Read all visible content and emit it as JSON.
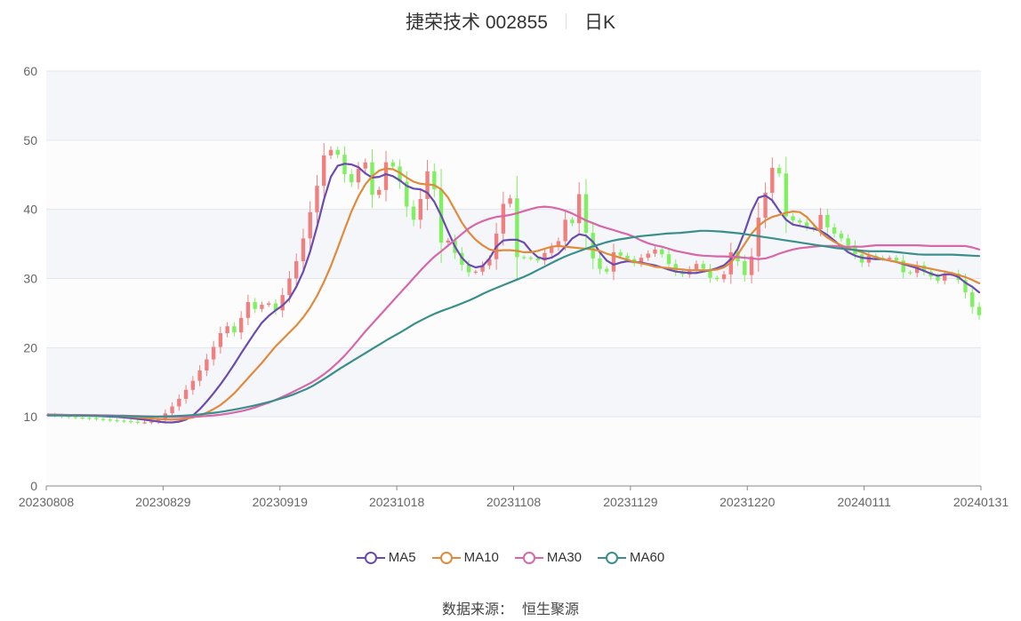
{
  "header": {
    "title": "捷荣技术 002855",
    "period": "日K"
  },
  "legend": [
    {
      "label": "MA5",
      "color": "#6a4bb0"
    },
    {
      "label": "MA10",
      "color": "#e08a3c"
    },
    {
      "label": "MA30",
      "color": "#d667a8"
    },
    {
      "label": "MA60",
      "color": "#3a8f8c"
    }
  ],
  "source": {
    "label": "数据来源：",
    "value": "恒生聚源"
  },
  "chart_data": {
    "type": "candlestick",
    "title": "捷荣技术 002855",
    "period": "日K",
    "ylim": [
      0,
      60
    ],
    "y_ticks": [
      0,
      10,
      20,
      30,
      40,
      50,
      60
    ],
    "x_ticks": [
      "20230808",
      "20230829",
      "20230919",
      "20231018",
      "20231108",
      "20231129",
      "20231220",
      "20240111",
      "20240131"
    ],
    "grid": true,
    "legend_position": "bottom",
    "colors": {
      "up": "#f08080",
      "down": "#80f060"
    },
    "close": [
      10.3,
      10.2,
      10.1,
      10.0,
      9.9,
      9.85,
      9.8,
      9.7,
      9.6,
      9.5,
      9.45,
      9.4,
      9.3,
      9.2,
      9.2,
      9.3,
      9.6,
      10.5,
      11.5,
      12.6,
      13.9,
      15.2,
      16.7,
      18.3,
      20.1,
      22.1,
      23.1,
      22.2,
      24.3,
      26.6,
      25.6,
      26.2,
      26.4,
      25.4,
      27.6,
      30.0,
      32.5,
      35.8,
      39.6,
      43.4,
      47.8,
      48.6,
      47.9,
      45.1,
      43.9,
      45.9,
      46.8,
      42.1,
      42.8,
      46.8,
      46.2,
      44.0,
      40.4,
      38.5,
      41.5,
      45.5,
      42.9,
      35.2,
      35.5,
      33.7,
      32.0,
      30.9,
      31.0,
      31.9,
      32.8,
      36.5,
      40.8,
      41.6,
      33.1,
      33.0,
      32.9,
      32.6,
      33.7,
      34.6,
      35.4,
      38.5,
      38.0,
      42.2,
      36.6,
      32.9,
      31.4,
      31.0,
      33.8,
      33.3,
      32.8,
      32.2,
      33.0,
      33.6,
      34.2,
      33.5,
      32.1,
      31.0,
      30.6,
      31.3,
      32.1,
      31.4,
      30.1,
      29.9,
      30.6,
      33.8,
      32.5,
      30.5,
      33.2,
      38.8,
      42.4,
      46.0,
      45.2,
      39.0,
      38.4,
      38.1,
      37.4,
      37.1,
      39.2,
      37.4,
      36.5,
      35.8,
      34.8,
      33.5,
      32.3,
      33.3,
      33.0,
      32.8,
      33.0,
      32.6,
      30.9,
      30.8,
      31.9,
      31.0,
      30.3,
      29.7,
      30.6,
      30.7,
      29.8,
      28.0,
      25.9,
      24.7
    ],
    "series": [
      {
        "name": "MA5",
        "values": [
          10.3,
          10.28,
          10.27,
          10.25,
          10.23,
          10.2,
          10.17,
          10.13,
          10.09,
          10.04,
          9.98,
          9.9,
          9.8,
          9.7,
          9.58,
          9.45,
          9.3,
          9.2,
          9.18,
          9.3,
          9.6,
          10.2,
          11.1,
          12.2,
          13.4,
          14.7,
          16.1,
          17.6,
          19.2,
          20.7,
          22.2,
          23.6,
          24.6,
          25.4,
          26.1,
          27.1,
          28.8,
          31.0,
          33.9,
          37.5,
          41.4,
          44.7,
          46.3,
          46.6,
          46.5,
          46.1,
          45.2,
          44.6,
          44.7,
          45.1,
          44.8,
          44.2,
          43.4,
          43.0,
          42.9,
          42.4,
          41.1,
          39.1,
          36.8,
          34.6,
          33.0,
          32.0,
          31.6,
          31.8,
          32.9,
          34.6,
          35.5,
          35.6,
          35.6,
          35.2,
          34.0,
          33.1,
          32.8,
          33.0,
          33.6,
          34.6,
          35.8,
          36.4,
          36.2,
          35.3,
          33.8,
          32.6,
          32.0,
          32.3,
          32.5,
          32.4,
          32.3,
          32.1,
          31.9,
          31.6,
          31.3,
          31.0,
          30.9,
          30.8,
          30.8,
          31.0,
          31.2,
          31.5,
          31.9,
          32.8,
          34.3,
          36.8,
          39.7,
          41.7,
          42.0,
          41.3,
          39.8,
          38.5,
          37.8,
          37.6,
          37.4,
          37.2,
          36.9,
          36.3,
          35.5,
          34.6,
          33.8,
          33.3,
          33.0,
          32.9,
          32.8,
          32.8,
          32.6,
          32.4,
          32.1,
          31.8,
          31.5,
          31.1,
          30.7,
          30.4,
          30.6,
          30.6,
          30.2,
          29.4,
          28.8,
          28.0
        ]
      },
      {
        "name": "MA10",
        "values": [
          10.3,
          10.29,
          10.28,
          10.27,
          10.26,
          10.25,
          10.23,
          10.21,
          10.19,
          10.16,
          10.12,
          10.07,
          10.0,
          9.92,
          9.84,
          9.76,
          9.68,
          9.62,
          9.6,
          9.62,
          9.72,
          9.9,
          10.2,
          10.6,
          11.1,
          11.7,
          12.5,
          13.4,
          14.5,
          15.6,
          16.7,
          17.8,
          19.0,
          20.2,
          21.2,
          22.2,
          23.2,
          24.4,
          25.8,
          27.5,
          29.5,
          31.8,
          34.4,
          37.1,
          39.7,
          41.9,
          43.6,
          44.8,
          45.6,
          45.9,
          45.8,
          45.3,
          44.6,
          44.0,
          43.7,
          43.6,
          43.5,
          42.9,
          41.7,
          39.9,
          38.1,
          36.7,
          35.6,
          34.8,
          34.2,
          34.0,
          34.1,
          34.1,
          34.0,
          33.8,
          33.8,
          34.0,
          34.3,
          34.6,
          34.7,
          34.6,
          34.5,
          34.4,
          34.3,
          34.2,
          34.0,
          33.6,
          33.3,
          33.0,
          32.7,
          32.4,
          32.2,
          32.0,
          31.7,
          31.6,
          31.5,
          31.4,
          31.3,
          31.2,
          31.2,
          31.2,
          31.2,
          31.3,
          31.6,
          32.3,
          33.5,
          35.0,
          36.5,
          37.6,
          38.4,
          38.9,
          39.2,
          39.5,
          39.7,
          39.6,
          38.9,
          37.8,
          36.7,
          35.9,
          35.3,
          34.8,
          34.4,
          34.1,
          33.8,
          33.4,
          33.1,
          32.8,
          32.6,
          32.4,
          32.2,
          32.0,
          31.8,
          31.6,
          31.4,
          31.2,
          31.0,
          30.8,
          30.5,
          30.2,
          29.8,
          29.3
        ]
      },
      {
        "name": "MA30",
        "values": [
          10.3,
          10.29,
          10.28,
          10.27,
          10.26,
          10.25,
          10.24,
          10.23,
          10.22,
          10.2,
          10.18,
          10.16,
          10.13,
          10.1,
          10.07,
          10.04,
          10.0,
          9.98,
          9.97,
          9.97,
          9.98,
          10.0,
          10.05,
          10.12,
          10.2,
          10.3,
          10.45,
          10.62,
          10.82,
          11.06,
          11.35,
          11.7,
          12.05,
          12.45,
          12.9,
          13.35,
          13.85,
          14.35,
          14.85,
          15.45,
          16.15,
          16.95,
          17.85,
          18.85,
          19.95,
          21.15,
          22.35,
          23.45,
          24.55,
          25.65,
          26.75,
          27.85,
          28.95,
          30.05,
          31.15,
          32.2,
          33.15,
          33.95,
          34.75,
          35.6,
          36.45,
          37.25,
          37.85,
          38.3,
          38.65,
          38.9,
          39.05,
          39.2,
          39.45,
          39.75,
          40.05,
          40.3,
          40.4,
          40.3,
          40.1,
          39.8,
          39.4,
          38.9,
          38.4,
          38.0,
          37.6,
          37.3,
          37.0,
          36.7,
          36.4,
          36.0,
          35.5,
          35.1,
          34.8,
          34.6,
          34.3,
          34.0,
          33.8,
          33.6,
          33.4,
          33.3,
          33.25,
          33.2,
          33.2,
          33.15,
          33.1,
          33.0,
          32.9,
          32.8,
          32.9,
          33.2,
          33.6,
          33.9,
          34.2,
          34.4,
          34.5,
          34.6,
          34.7,
          34.7,
          34.7,
          34.6,
          34.6,
          34.6,
          34.6,
          34.7,
          34.8,
          34.8,
          34.8,
          34.8,
          34.8,
          34.8,
          34.8,
          34.75,
          34.7,
          34.7,
          34.7,
          34.7,
          34.7,
          34.7,
          34.5,
          34.2
        ]
      },
      {
        "name": "MA60",
        "values": [
          10.2,
          10.2,
          10.19,
          10.18,
          10.17,
          10.16,
          10.15,
          10.14,
          10.13,
          10.12,
          10.11,
          10.1,
          10.08,
          10.07,
          10.06,
          10.05,
          10.05,
          10.06,
          10.08,
          10.12,
          10.17,
          10.24,
          10.32,
          10.42,
          10.53,
          10.65,
          10.8,
          10.97,
          11.15,
          11.35,
          11.55,
          11.78,
          12.02,
          12.28,
          12.56,
          12.86,
          13.2,
          13.6,
          14.0,
          14.5,
          15.1,
          15.7,
          16.35,
          17.0,
          17.6,
          18.2,
          18.8,
          19.4,
          20.0,
          20.6,
          21.2,
          21.75,
          22.3,
          22.9,
          23.5,
          24.0,
          24.5,
          24.95,
          25.35,
          25.7,
          26.05,
          26.45,
          26.85,
          27.3,
          27.8,
          28.25,
          28.65,
          29.05,
          29.45,
          29.85,
          30.25,
          30.7,
          31.2,
          31.7,
          32.2,
          32.7,
          33.15,
          33.55,
          33.9,
          34.25,
          34.6,
          34.9,
          35.2,
          35.45,
          35.65,
          35.8,
          35.95,
          36.1,
          36.2,
          36.3,
          36.4,
          36.5,
          36.55,
          36.6,
          36.7,
          36.8,
          36.9,
          36.9,
          36.85,
          36.8,
          36.7,
          36.6,
          36.5,
          36.35,
          36.2,
          36.05,
          35.9,
          35.75,
          35.6,
          35.45,
          35.3,
          35.15,
          35.0,
          34.85,
          34.7,
          34.55,
          34.4,
          34.3,
          34.2,
          34.1,
          34.0,
          33.95,
          33.95,
          33.95,
          33.9,
          33.8,
          33.7,
          33.6,
          33.5,
          33.45,
          33.45,
          33.45,
          33.45,
          33.45,
          33.4,
          33.35,
          33.3,
          33.25
        ]
      }
    ]
  }
}
